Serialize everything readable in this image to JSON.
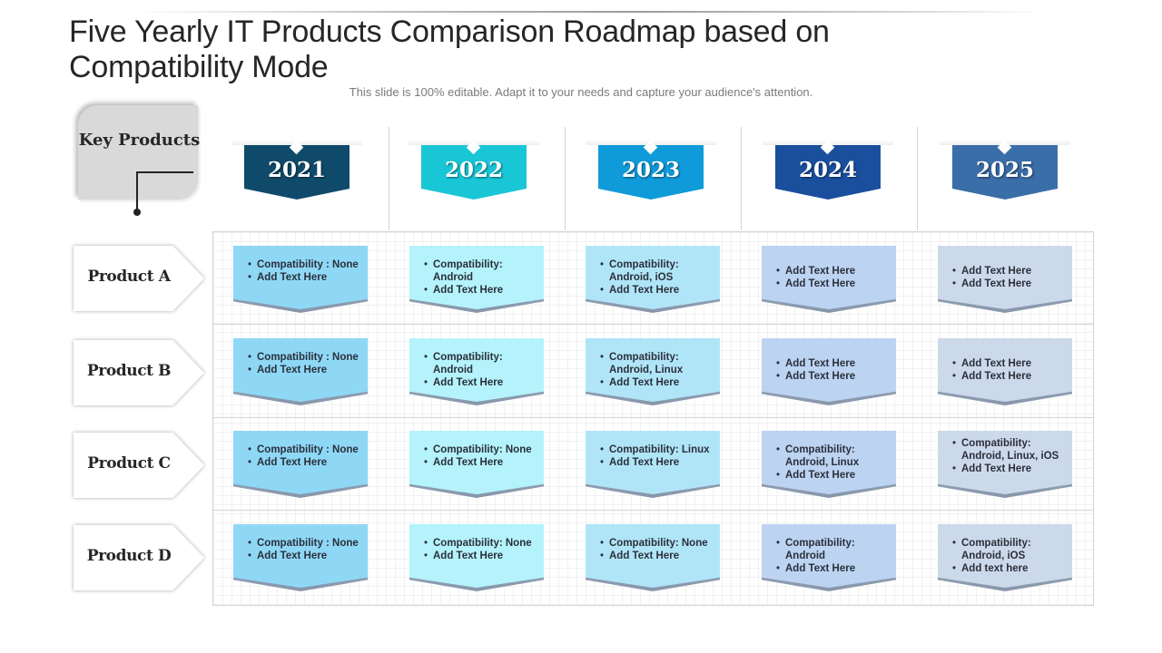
{
  "slide": {
    "title": "Five Yearly IT Products Comparison Roadmap based on Compatibility Mode",
    "subtitle": "This slide is 100% editable. Adapt it to your needs and capture your audience's attention."
  },
  "key_box": {
    "label": "Key Products"
  },
  "years": [
    {
      "label": "2021",
      "color": "#0f4a6a"
    },
    {
      "label": "2022",
      "color": "#18c6d6"
    },
    {
      "label": "2023",
      "color": "#0f9bd9"
    },
    {
      "label": "2024",
      "color": "#1a4f9e"
    },
    {
      "label": "2025",
      "color": "#3a6ea8"
    }
  ],
  "cell_colors": [
    "#8ed8f6",
    "#b4f3fb",
    "#b0e5f8",
    "#bcd3f2",
    "#ccd9ea"
  ],
  "products": [
    {
      "label": "Product A",
      "cells": [
        [
          "Compatibility : None",
          "Add Text Here"
        ],
        [
          "Compatibility: Android",
          "Add Text Here"
        ],
        [
          "Compatibility: Android, iOS",
          "Add Text Here"
        ],
        [
          "Add Text Here",
          "Add Text Here"
        ],
        [
          "Add Text Here",
          "Add Text Here"
        ]
      ]
    },
    {
      "label": "Product B",
      "cells": [
        [
          "Compatibility : None",
          "Add Text Here"
        ],
        [
          "Compatibility: Android",
          "Add Text Here"
        ],
        [
          "Compatibility: Android, Linux",
          "Add Text Here"
        ],
        [
          "Add Text Here",
          "Add Text Here"
        ],
        [
          "Add Text Here",
          "Add Text Here"
        ]
      ]
    },
    {
      "label": "Product C",
      "cells": [
        [
          "Compatibility : None",
          "Add Text Here"
        ],
        [
          "Compatibility: None",
          "Add Text Here"
        ],
        [
          "Compatibility: Linux",
          "Add Text Here"
        ],
        [
          "Compatibility: Android, Linux",
          "Add Text Here"
        ],
        [
          "Compatibility: Android, Linux, iOS",
          "Add Text Here"
        ]
      ]
    },
    {
      "label": "Product D",
      "cells": [
        [
          "Compatibility : None",
          "Add Text Here"
        ],
        [
          "Compatibility: None",
          "Add Text Here"
        ],
        [
          "Compatibility: None",
          "Add Text Here"
        ],
        [
          "Compatibility: Android",
          "Add Text Here"
        ],
        [
          "Compatibility: Android, iOS",
          "Add text here"
        ]
      ]
    }
  ]
}
